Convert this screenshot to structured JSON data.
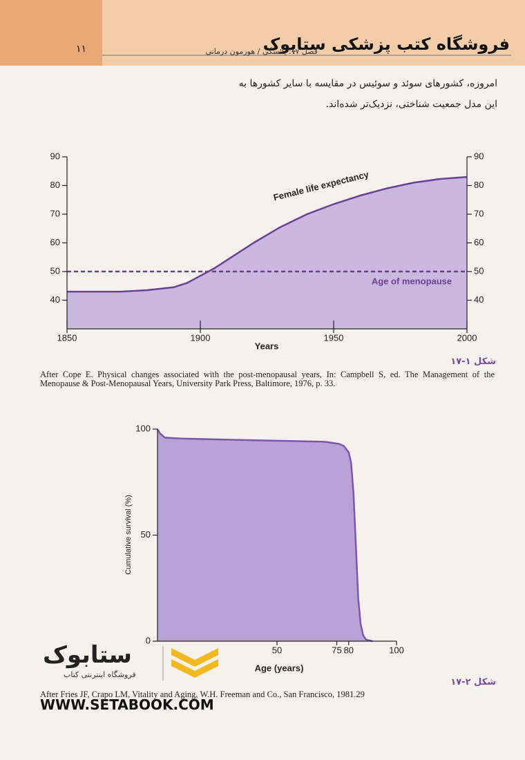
{
  "header": {
    "page_number": "۱۱",
    "title": "فروشگاه کتب پزشکی ستاپوک",
    "subtitle": "فصل ۱۷: یائسگی / هورمون درمانی"
  },
  "body": {
    "paragraph": "امروزه، کشورهای سوئد و سوئیس در مقایسه با سایر کشورها به این مدل جمعیت شناختی، نزدیک‌تر شده‌اند."
  },
  "figures": [
    {
      "caption": "شکل ۱-۱۷",
      "reference": "After Cope E. Physical changes associated with the post-menopausal years, In: Campbell S, ed. The Management of the Menopause & Post-Menopausal Years, University Park Press, Baltimore, 1976, p. 33."
    },
    {
      "caption": "شکل ۲-۱۷",
      "reference": "After Fries JF, Crapo LM, Vitality and Aging, W.H. Freeman and Co., San Francisco, 1981.29"
    }
  ],
  "chart_data": [
    {
      "type": "area",
      "xlabel": "Years",
      "xlim": [
        1850,
        2000
      ],
      "xticks": [
        1850,
        1900,
        1950,
        2000
      ],
      "ylim": [
        30,
        90
      ],
      "yticks": [
        40,
        50,
        60,
        70,
        80,
        90
      ],
      "y2lim": [
        30,
        90
      ],
      "y2ticks": [
        40,
        50,
        60,
        70,
        80,
        90
      ],
      "series": [
        {
          "name": "Female life expectancy",
          "color": "#6b3f93",
          "fill": "#cbb8e0",
          "x": [
            1850,
            1860,
            1870,
            1880,
            1890,
            1895,
            1900,
            1905,
            1910,
            1920,
            1930,
            1940,
            1950,
            1960,
            1970,
            1980,
            1990,
            2000
          ],
          "values": [
            43,
            43,
            43,
            43.5,
            44.5,
            46,
            48.5,
            51,
            54,
            60,
            65.5,
            70,
            73.5,
            76.5,
            79,
            81,
            82.3,
            83
          ]
        },
        {
          "name": "Age of menopause",
          "color": "#6b3f93",
          "dashed": true,
          "x": [
            1850,
            2000
          ],
          "values": [
            50,
            50
          ]
        }
      ]
    },
    {
      "type": "area",
      "xlabel": "Age (years)",
      "ylabel": "Cumulative survival (%)",
      "xlim": [
        0,
        100
      ],
      "xticks": [
        50,
        75,
        80,
        100
      ],
      "ylim": [
        0,
        100
      ],
      "yticks": [
        0,
        50,
        100
      ],
      "series": [
        {
          "color": "#7d55ac",
          "fill": "#b9a2d6",
          "x": [
            0,
            1,
            3,
            10,
            30,
            50,
            70,
            76,
            78,
            80,
            81,
            82,
            83,
            84,
            85,
            86,
            87,
            88,
            90
          ],
          "values": [
            100,
            98,
            96,
            95.5,
            95,
            94.5,
            94,
            93,
            92,
            89,
            84,
            70,
            45,
            20,
            8,
            3,
            1,
            0.5,
            0
          ]
        }
      ]
    }
  ],
  "watermark": {
    "logo": "ستابوک",
    "tagline": "فروشگاه اینترنتی کتاب",
    "url": "WWW.SETABOOK.COM"
  }
}
